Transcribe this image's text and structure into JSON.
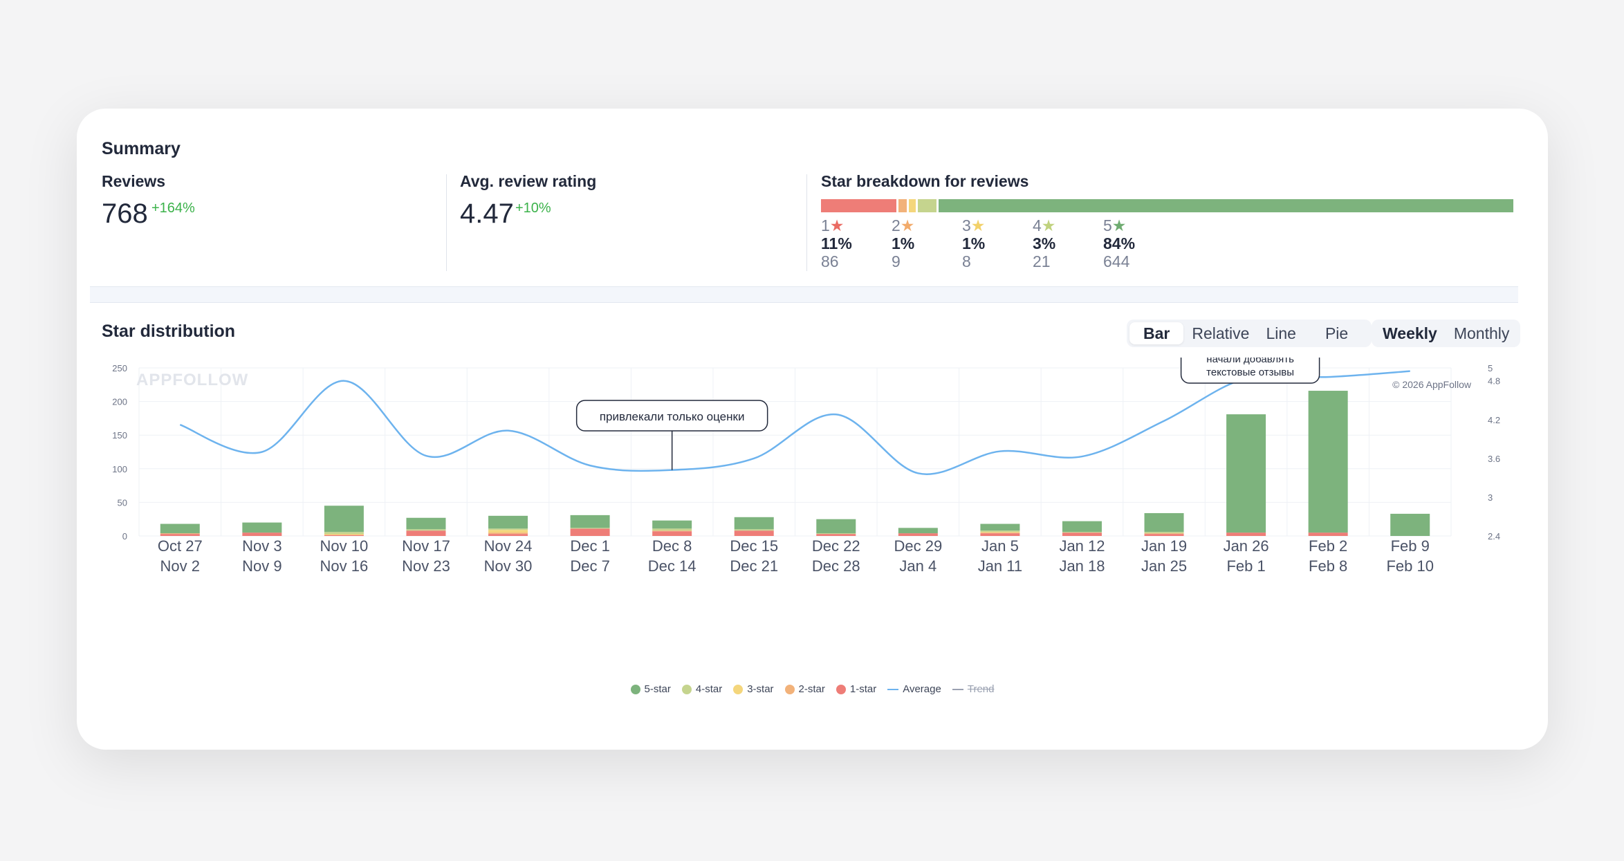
{
  "summary": {
    "title": "Summary",
    "reviews": {
      "label": "Reviews",
      "value": "768",
      "delta": "+164%"
    },
    "avg_rating": {
      "label": "Avg. review rating",
      "value": "4.47",
      "delta": "+10%"
    },
    "breakdown": {
      "label": "Star breakdown for reviews",
      "items": [
        {
          "star": "1",
          "pct": "11%",
          "count": "86",
          "color": "#ee7d77",
          "star_color": "#ea6b63",
          "share": 0.11
        },
        {
          "star": "2",
          "pct": "1%",
          "count": "9",
          "color": "#f2b27a",
          "star_color": "#f2ab6b",
          "share": 0.012
        },
        {
          "star": "3",
          "pct": "1%",
          "count": "8",
          "color": "#f4d67c",
          "star_color": "#f2d16a",
          "share": 0.01
        },
        {
          "star": "4",
          "pct": "3%",
          "count": "21",
          "color": "#c5d48e",
          "star_color": "#c0d27e",
          "share": 0.027
        },
        {
          "star": "5",
          "pct": "84%",
          "count": "644",
          "color": "#7db37d",
          "star_color": "#6fac71",
          "share": 0.838
        }
      ]
    }
  },
  "star_distribution": {
    "title": "Star distribution",
    "chart_types": [
      "Bar",
      "Relative",
      "Line",
      "Pie"
    ],
    "active_chart_type": "Bar",
    "periods": [
      "Weekly",
      "Monthly"
    ],
    "active_period": "Weekly",
    "watermark": "APPFOLLOW",
    "copyright": "© 2026 AppFollow",
    "annotations": [
      {
        "text": "привлекали только оценки",
        "at_index": 6
      },
      {
        "text_lines": [
          "начали добавлять",
          "текстовые отзывы"
        ],
        "at_index": 13
      }
    ],
    "legend": [
      {
        "label": "5-star",
        "color": "#7db37d",
        "kind": "dot"
      },
      {
        "label": "4-star",
        "color": "#c5d48e",
        "kind": "dot"
      },
      {
        "label": "3-star",
        "color": "#f4d67c",
        "kind": "dot"
      },
      {
        "label": "2-star",
        "color": "#f2b27a",
        "kind": "dot"
      },
      {
        "label": "1-star",
        "color": "#ee7d77",
        "kind": "dot"
      },
      {
        "label": "Average",
        "color": "#6db3ee",
        "kind": "line"
      },
      {
        "label": "Trend",
        "color": "#9aa1b1",
        "kind": "line",
        "muted": true
      }
    ]
  },
  "chart_data": {
    "type": "bar",
    "stacked": true,
    "categories": [
      [
        "Oct 27",
        "Nov 2"
      ],
      [
        "Nov 3",
        "Nov 9"
      ],
      [
        "Nov 10",
        "Nov 16"
      ],
      [
        "Nov 17",
        "Nov 23"
      ],
      [
        "Nov 24",
        "Nov 30"
      ],
      [
        "Dec 1",
        "Dec 7"
      ],
      [
        "Dec 8",
        "Dec 14"
      ],
      [
        "Dec 15",
        "Dec 21"
      ],
      [
        "Dec 22",
        "Dec 28"
      ],
      [
        "Dec 29",
        "Jan 4"
      ],
      [
        "Jan 5",
        "Jan 11"
      ],
      [
        "Jan 12",
        "Jan 18"
      ],
      [
        "Jan 19",
        "Jan 25"
      ],
      [
        "Jan 26",
        "Feb 1"
      ],
      [
        "Feb 2",
        "Feb 8"
      ],
      [
        "Feb 9",
        "Feb 10"
      ]
    ],
    "series": [
      {
        "name": "1-star",
        "color": "#ee7d77",
        "values": [
          3,
          5,
          1,
          8,
          3,
          11,
          7,
          8,
          3,
          4,
          4,
          5,
          3,
          5,
          5,
          0
        ]
      },
      {
        "name": "2-star",
        "color": "#f2b27a",
        "values": [
          1,
          0,
          1,
          0,
          2,
          0,
          1,
          0,
          0,
          0,
          1,
          0,
          1,
          0,
          0,
          0
        ]
      },
      {
        "name": "3-star",
        "color": "#f4d67c",
        "values": [
          0,
          0,
          1,
          0,
          4,
          0,
          0,
          0,
          0,
          0,
          1,
          0,
          0,
          0,
          0,
          0
        ]
      },
      {
        "name": "4-star",
        "color": "#c5d48e",
        "values": [
          0,
          0,
          3,
          2,
          2,
          1,
          3,
          2,
          1,
          0,
          2,
          1,
          2,
          0,
          0,
          0
        ]
      },
      {
        "name": "5-star",
        "color": "#7db37d",
        "values": [
          14,
          15,
          39,
          17,
          19,
          19,
          12,
          18,
          21,
          8,
          10,
          16,
          28,
          176,
          211,
          33
        ]
      }
    ],
    "line_series": {
      "name": "Average",
      "color": "#6db3ee",
      "axis": "right",
      "values": [
        4.12,
        3.7,
        4.8,
        3.64,
        4.03,
        3.49,
        3.42,
        3.6,
        4.28,
        3.37,
        3.71,
        3.63,
        4.18,
        4.84,
        4.86,
        4.95
      ]
    },
    "y_left": {
      "ticks": [
        0,
        50,
        100,
        150,
        200,
        250
      ],
      "range": [
        0,
        250
      ]
    },
    "y_right": {
      "ticks": [
        "2.4",
        "3",
        "3.6",
        "4.2",
        "4.8",
        "5"
      ],
      "range": [
        2.4,
        5
      ]
    },
    "grid": true,
    "legend_position": "bottom"
  }
}
